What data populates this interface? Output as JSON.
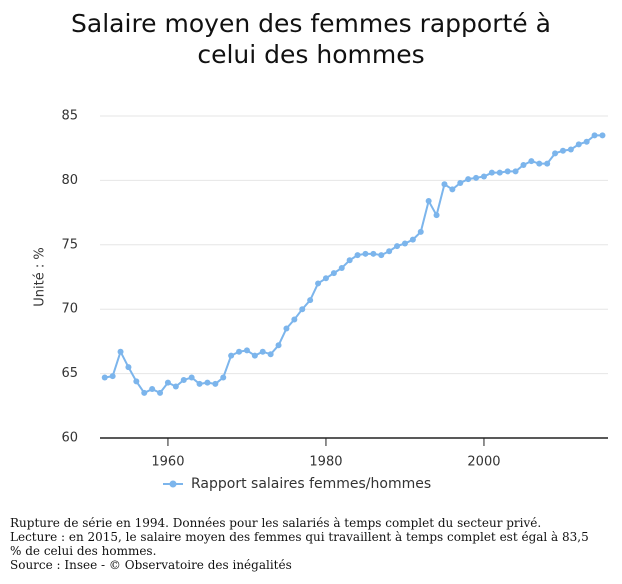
{
  "chart_data": {
    "type": "line",
    "title": "Salaire moyen des femmes rapporté à celui des hommes",
    "y_axis_label": "Unité : %",
    "x": [
      1952,
      1953,
      1954,
      1955,
      1956,
      1957,
      1958,
      1959,
      1960,
      1961,
      1962,
      1963,
      1964,
      1965,
      1966,
      1967,
      1968,
      1969,
      1970,
      1971,
      1972,
      1973,
      1974,
      1975,
      1976,
      1977,
      1978,
      1979,
      1980,
      1981,
      1982,
      1983,
      1984,
      1985,
      1986,
      1987,
      1988,
      1989,
      1990,
      1991,
      1992,
      1993,
      1994,
      1995,
      1996,
      1997,
      1998,
      1999,
      2000,
      2001,
      2002,
      2003,
      2004,
      2005,
      2006,
      2007,
      2008,
      2009,
      2010,
      2011,
      2012,
      2013,
      2014,
      2015
    ],
    "series": [
      {
        "name": "Rapport salaires femmes/hommes",
        "color": "#7cb5ec",
        "values": [
          64.7,
          64.8,
          66.7,
          65.5,
          64.4,
          63.5,
          63.8,
          63.5,
          64.3,
          64.0,
          64.5,
          64.7,
          64.2,
          64.3,
          64.2,
          64.7,
          66.4,
          66.7,
          66.8,
          66.4,
          66.7,
          66.5,
          67.2,
          68.5,
          69.2,
          70.0,
          70.7,
          72.0,
          72.4,
          72.8,
          73.2,
          73.8,
          74.2,
          74.3,
          74.3,
          74.2,
          74.5,
          74.9,
          75.1,
          75.4,
          76.0,
          78.4,
          77.3,
          79.7,
          79.3,
          79.8,
          80.1,
          80.2,
          80.3,
          80.6,
          80.6,
          80.7,
          80.7,
          81.2,
          81.5,
          81.3,
          81.3,
          82.1,
          82.3,
          82.4,
          82.8,
          83.0,
          83.5,
          83.5
        ]
      }
    ],
    "xlim": [
      1951.4,
      2015.7
    ],
    "xticks": [
      1960,
      1980,
      2000
    ],
    "ylim": [
      60,
      85
    ],
    "yticks": [
      60,
      65,
      70,
      75,
      80,
      85
    ],
    "grid": true,
    "notes": [
      "Rupture de série en 1994. Données pour les salariés à temps complet du secteur privé.",
      "Lecture : en 2015, le salaire moyen des femmes qui travaillent à temps complet est égal à 83,5 % de celui des hommes.",
      "Source : Insee - © Observatoire des inégalités"
    ]
  }
}
